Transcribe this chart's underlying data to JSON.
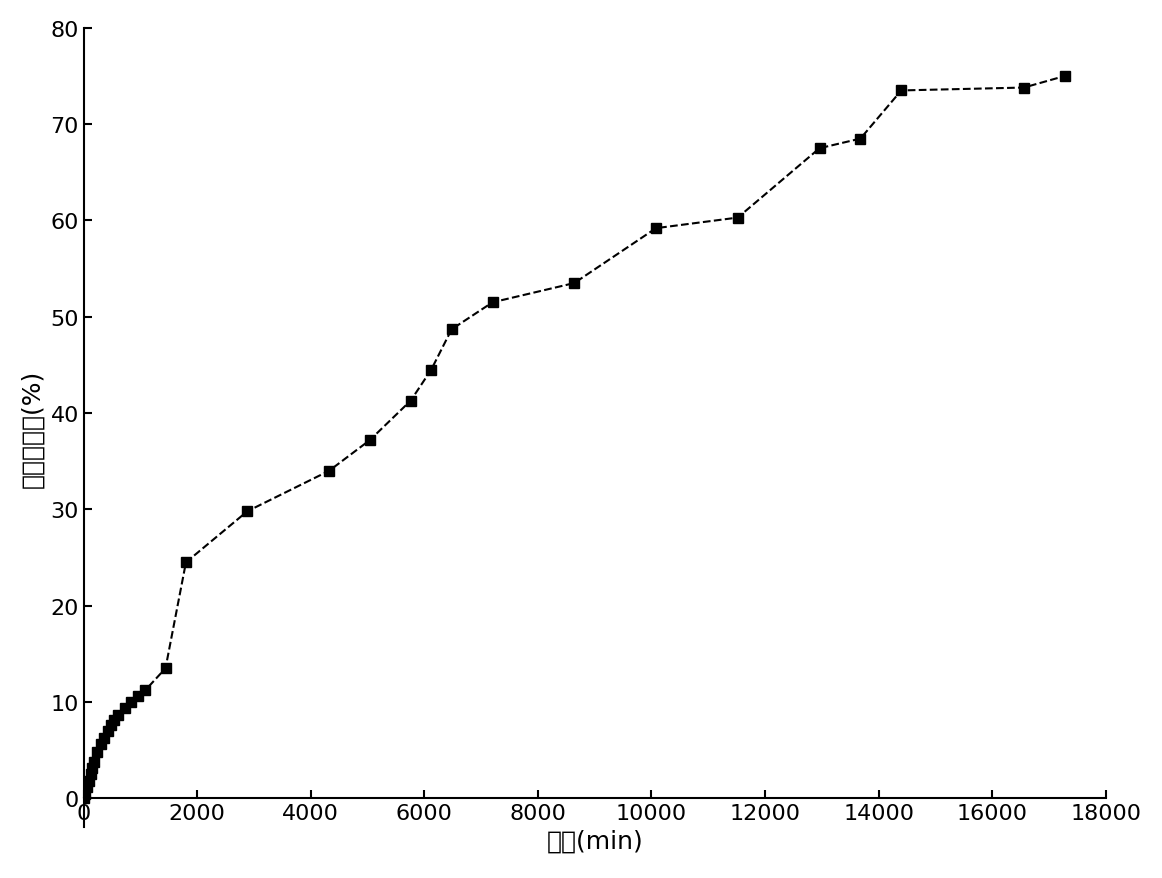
{
  "x": [
    0,
    30,
    60,
    90,
    120,
    150,
    180,
    240,
    300,
    360,
    420,
    480,
    540,
    600,
    720,
    840,
    960,
    1080,
    1440,
    1800,
    2880,
    4320,
    5040,
    5760,
    6120,
    6480,
    7200,
    8640,
    10080,
    11520,
    12960,
    13680,
    14400,
    16560,
    17280
  ],
  "y": [
    0.0,
    0.5,
    1.2,
    1.8,
    2.5,
    3.1,
    3.8,
    4.8,
    5.6,
    6.3,
    7.0,
    7.6,
    8.1,
    8.6,
    9.4,
    10.0,
    10.6,
    11.2,
    13.5,
    24.5,
    29.8,
    34.0,
    37.2,
    41.3,
    44.5,
    48.7,
    51.5,
    53.5,
    59.2,
    60.3,
    67.5,
    68.5,
    73.5,
    73.8,
    75.0
  ],
  "xlabel": "时间(min)",
  "ylabel": "药物释放量(%)",
  "xlim": [
    0,
    18000
  ],
  "ylim": [
    -3,
    80
  ],
  "xticks": [
    0,
    2000,
    4000,
    6000,
    8000,
    10000,
    12000,
    14000,
    16000,
    18000
  ],
  "yticks": [
    0,
    10,
    20,
    30,
    40,
    50,
    60,
    70,
    80
  ],
  "line_color": "#000000",
  "marker": "s",
  "marker_size": 7,
  "line_style": "--",
  "line_width": 1.5,
  "background_color": "#ffffff",
  "xlabel_fontsize": 18,
  "ylabel_fontsize": 18,
  "tick_fontsize": 16
}
